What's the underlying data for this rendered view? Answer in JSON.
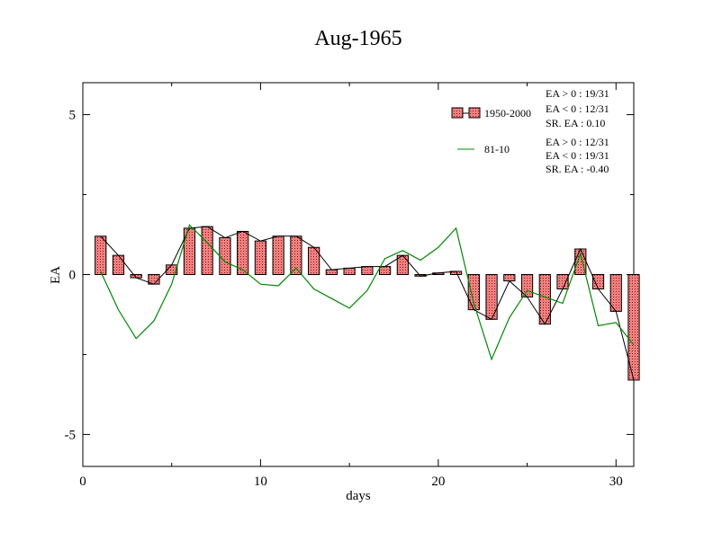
{
  "chart_data": {
    "type": "bar",
    "title": "Aug-1965",
    "xlabel": "days",
    "ylabel": "EA",
    "xlim": [
      0,
      31
    ],
    "ylim": [
      -6,
      6
    ],
    "x_ticks": [
      0,
      10,
      20,
      30
    ],
    "x_tick_labels": [
      "0",
      "10",
      "20",
      "30"
    ],
    "y_ticks": [
      -5,
      0,
      5
    ],
    "y_tick_labels": [
      "-5",
      "0",
      "5"
    ],
    "grid": false,
    "legend_position": "top-right",
    "x": [
      1,
      2,
      3,
      4,
      5,
      6,
      7,
      8,
      9,
      10,
      11,
      12,
      13,
      14,
      15,
      16,
      17,
      18,
      19,
      20,
      21,
      22,
      23,
      24,
      25,
      26,
      27,
      28,
      29,
      30,
      31
    ],
    "series": [
      {
        "name": "1950-2000",
        "kind": "bar+line",
        "color": "#f08080",
        "values": [
          1.2,
          0.6,
          -0.1,
          -0.3,
          0.3,
          1.45,
          1.5,
          1.15,
          1.35,
          1.05,
          1.2,
          1.2,
          0.85,
          0.15,
          0.2,
          0.25,
          0.25,
          0.6,
          -0.05,
          0.05,
          0.1,
          -1.1,
          -1.4,
          -0.2,
          -0.7,
          -1.55,
          -0.45,
          0.8,
          -0.45,
          -1.15,
          -3.3
        ]
      },
      {
        "name": "81-10",
        "kind": "line",
        "color": "#008800",
        "values": [
          0.1,
          -1.1,
          -2.0,
          -1.45,
          -0.3,
          1.55,
          1.0,
          0.4,
          0.15,
          -0.3,
          -0.35,
          0.2,
          -0.45,
          -0.75,
          -1.05,
          -0.5,
          0.5,
          0.75,
          0.45,
          0.85,
          1.45,
          -0.9,
          -2.65,
          -1.35,
          -0.5,
          -0.7,
          -0.9,
          0.65,
          -1.6,
          -1.5,
          -2.2
        ]
      }
    ],
    "stats": [
      [
        "EA > 0 : 19/31",
        "EA < 0 : 12/31",
        "SR. EA :  0.10"
      ],
      [
        "EA > 0 : 12/31",
        "EA < 0 : 19/31",
        "SR. EA : -0.40"
      ]
    ]
  }
}
